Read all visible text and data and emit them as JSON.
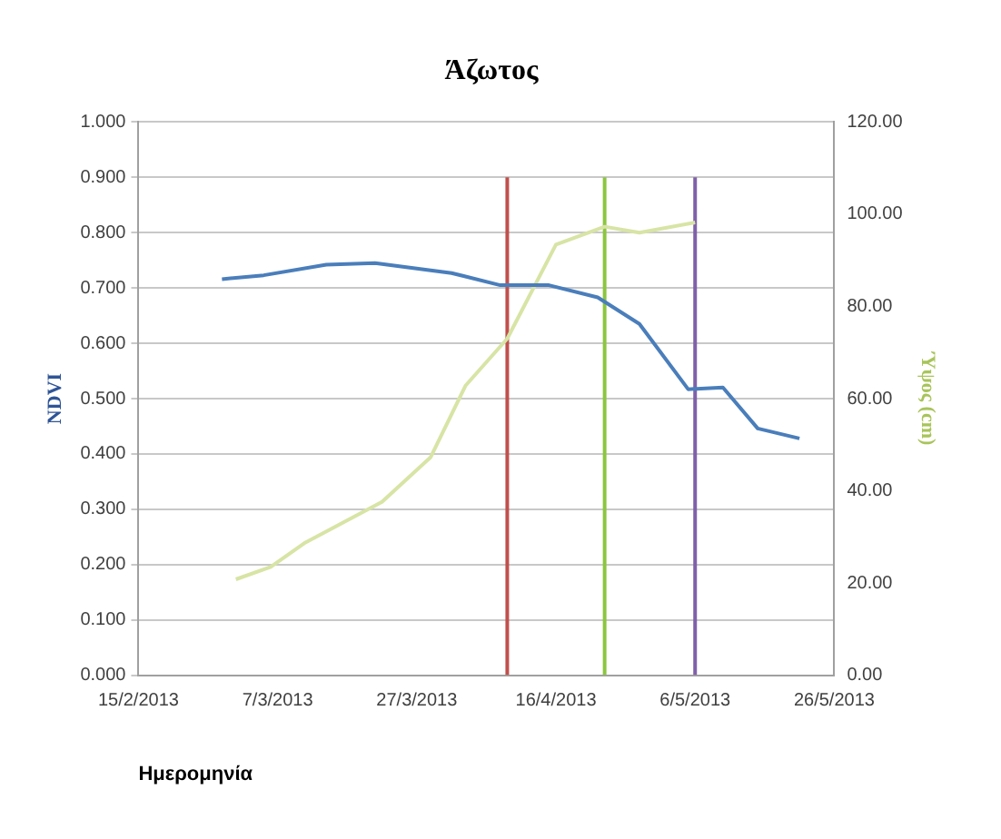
{
  "chart_data": {
    "type": "line",
    "title": "Άζωτος",
    "xlabel": "Ημερομηνία",
    "ylabel": "NDVI",
    "y2label": "Ύψος (cm)",
    "xlim": [
      "2013-02-15",
      "2013-05-26"
    ],
    "xticks": [
      {
        "value": "2013-02-15",
        "label": "15/2/2013"
      },
      {
        "value": "2013-03-07",
        "label": "7/3/2013"
      },
      {
        "value": "2013-03-27",
        "label": "27/3/2013"
      },
      {
        "value": "2013-04-16",
        "label": "16/4/2013"
      },
      {
        "value": "2013-05-06",
        "label": "6/5/2013"
      },
      {
        "value": "2013-05-26",
        "label": "26/5/2013"
      }
    ],
    "ylim": [
      0,
      1
    ],
    "yticks": [
      {
        "value": 0,
        "label": "0.000"
      },
      {
        "value": 0.1,
        "label": "0.100"
      },
      {
        "value": 0.2,
        "label": "0.200"
      },
      {
        "value": 0.3,
        "label": "0.300"
      },
      {
        "value": 0.4,
        "label": "0.400"
      },
      {
        "value": 0.5,
        "label": "0.500"
      },
      {
        "value": 0.6,
        "label": "0.600"
      },
      {
        "value": 0.7,
        "label": "0.700"
      },
      {
        "value": 0.8,
        "label": "0.800"
      },
      {
        "value": 0.9,
        "label": "0.900"
      },
      {
        "value": 1,
        "label": "1.000"
      }
    ],
    "y2lim": [
      0,
      120
    ],
    "y2ticks": [
      {
        "value": 0,
        "label": "0.00"
      },
      {
        "value": 20,
        "label": "20.00"
      },
      {
        "value": 40,
        "label": "40.00"
      },
      {
        "value": 60,
        "label": "60.00"
      },
      {
        "value": 80,
        "label": "80.00"
      },
      {
        "value": 100,
        "label": "100.00"
      },
      {
        "value": 120,
        "label": "120.00"
      }
    ],
    "grid": "y",
    "legend": false,
    "marker": "none",
    "line_style": "solid",
    "series": [
      {
        "color": "#4a7ebb",
        "x": [
          "2013-02-27",
          "2013-03-05",
          "2013-03-14",
          "2013-03-21",
          "2013-04-01",
          "2013-04-08",
          "2013-04-15",
          "2013-04-22",
          "2013-04-28",
          "2013-05-05",
          "2013-05-10",
          "2013-05-15",
          "2013-05-21"
        ],
        "values": [
          0.716,
          0.723,
          0.742,
          0.745,
          0.727,
          0.705,
          0.705,
          0.683,
          0.635,
          0.517,
          0.52,
          0.446,
          0.428
        ]
      },
      {
        "color": "#d7e4a5",
        "axis": "y2",
        "x": [
          "2013-03-01",
          "2013-03-06",
          "2013-03-11",
          "2013-03-22",
          "2013-03-29",
          "2013-04-03",
          "2013-04-09",
          "2013-04-16",
          "2013-04-23",
          "2013-04-28",
          "2013-05-06"
        ],
        "values": [
          20.8,
          23.5,
          28.8,
          37.6,
          47.3,
          62.8,
          73,
          93.4,
          97.3,
          96,
          98.2
        ]
      },
      {
        "color": "#c0504d",
        "x": [
          "2013-04-09",
          "2013-04-09"
        ],
        "values": [
          0,
          0.9
        ]
      },
      {
        "color": "#8cc63f",
        "x": [
          "2013-04-23",
          "2013-04-23"
        ],
        "values": [
          0,
          0.9
        ]
      },
      {
        "color": "#7f60a8",
        "x": [
          "2013-05-06",
          "2013-05-06"
        ],
        "values": [
          0,
          0.9
        ]
      }
    ]
  }
}
